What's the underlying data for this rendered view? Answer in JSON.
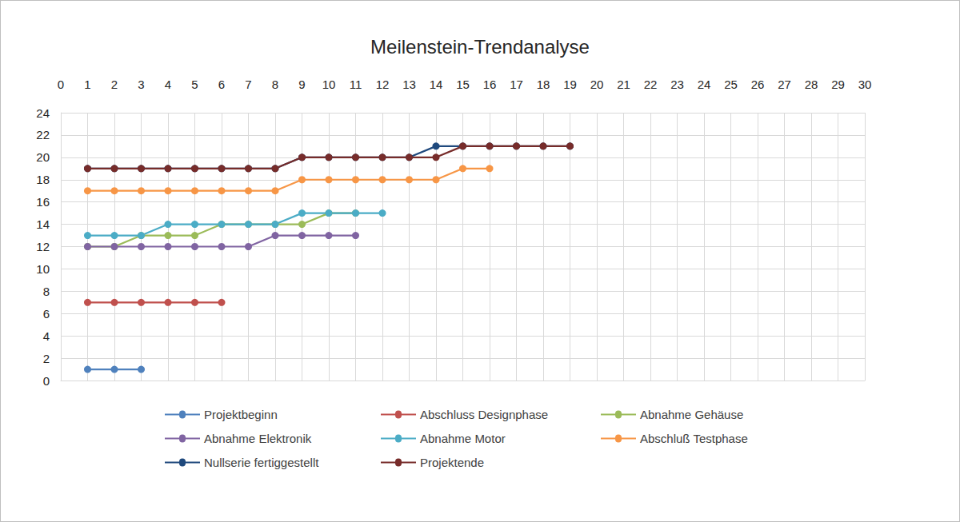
{
  "chart_data": {
    "type": "line",
    "title": "Meilenstein-Trendanalyse",
    "x": [
      1,
      2,
      3,
      4,
      5,
      6,
      7,
      8,
      9,
      10,
      11,
      12,
      13,
      14,
      15,
      16,
      17,
      18,
      19
    ],
    "series": [
      {
        "name": "Projektbeginn",
        "color": "#4f81bd",
        "values": [
          1,
          1,
          1,
          null,
          null,
          null,
          null,
          null,
          null,
          null,
          null,
          null,
          null,
          null,
          null,
          null,
          null,
          null,
          null
        ]
      },
      {
        "name": "Abschluss Designphase",
        "color": "#c0504d",
        "values": [
          7,
          7,
          7,
          7,
          7,
          7,
          null,
          null,
          null,
          null,
          null,
          null,
          null,
          null,
          null,
          null,
          null,
          null,
          null
        ]
      },
      {
        "name": "Abnahme Gehäuse",
        "color": "#9bbb59",
        "values": [
          12,
          12,
          13,
          13,
          13,
          14,
          14,
          14,
          14,
          15,
          15,
          null,
          null,
          null,
          null,
          null,
          null,
          null,
          null
        ]
      },
      {
        "name": "Abnahme Elektronik",
        "color": "#8064a2",
        "values": [
          12,
          12,
          12,
          12,
          12,
          12,
          12,
          13,
          13,
          13,
          13,
          null,
          null,
          null,
          null,
          null,
          null,
          null,
          null
        ]
      },
      {
        "name": "Abnahme Motor",
        "color": "#4bacc6",
        "values": [
          13,
          13,
          13,
          14,
          14,
          14,
          14,
          14,
          15,
          15,
          15,
          15,
          null,
          null,
          null,
          null,
          null,
          null,
          null
        ]
      },
      {
        "name": "Abschluß Testphase",
        "color": "#f79646",
        "values": [
          17,
          17,
          17,
          17,
          17,
          17,
          17,
          17,
          18,
          18,
          18,
          18,
          18,
          18,
          19,
          19,
          null,
          null,
          null
        ]
      },
      {
        "name": "Nullserie fertiggestellt",
        "color": "#1f497d",
        "values": [
          19,
          19,
          19,
          19,
          19,
          19,
          19,
          19,
          20,
          20,
          20,
          20,
          20,
          21,
          21,
          21,
          21,
          21,
          21
        ]
      },
      {
        "name": "Projektende",
        "color": "#772c2a",
        "values": [
          19,
          19,
          19,
          19,
          19,
          19,
          19,
          19,
          20,
          20,
          20,
          20,
          20,
          20,
          21,
          21,
          21,
          21,
          21
        ]
      }
    ],
    "xlim": [
      0,
      30
    ],
    "xticks": [
      0,
      1,
      2,
      3,
      4,
      5,
      6,
      7,
      8,
      9,
      10,
      11,
      12,
      13,
      14,
      15,
      16,
      17,
      18,
      19,
      20,
      21,
      22,
      23,
      24,
      25,
      26,
      27,
      28,
      29,
      30
    ],
    "ylim": [
      0,
      24
    ],
    "yticks": [
      0,
      2,
      4,
      6,
      8,
      10,
      12,
      14,
      16,
      18,
      20,
      22,
      24
    ],
    "grid": true,
    "legend": "bottom",
    "marker": "circle"
  }
}
